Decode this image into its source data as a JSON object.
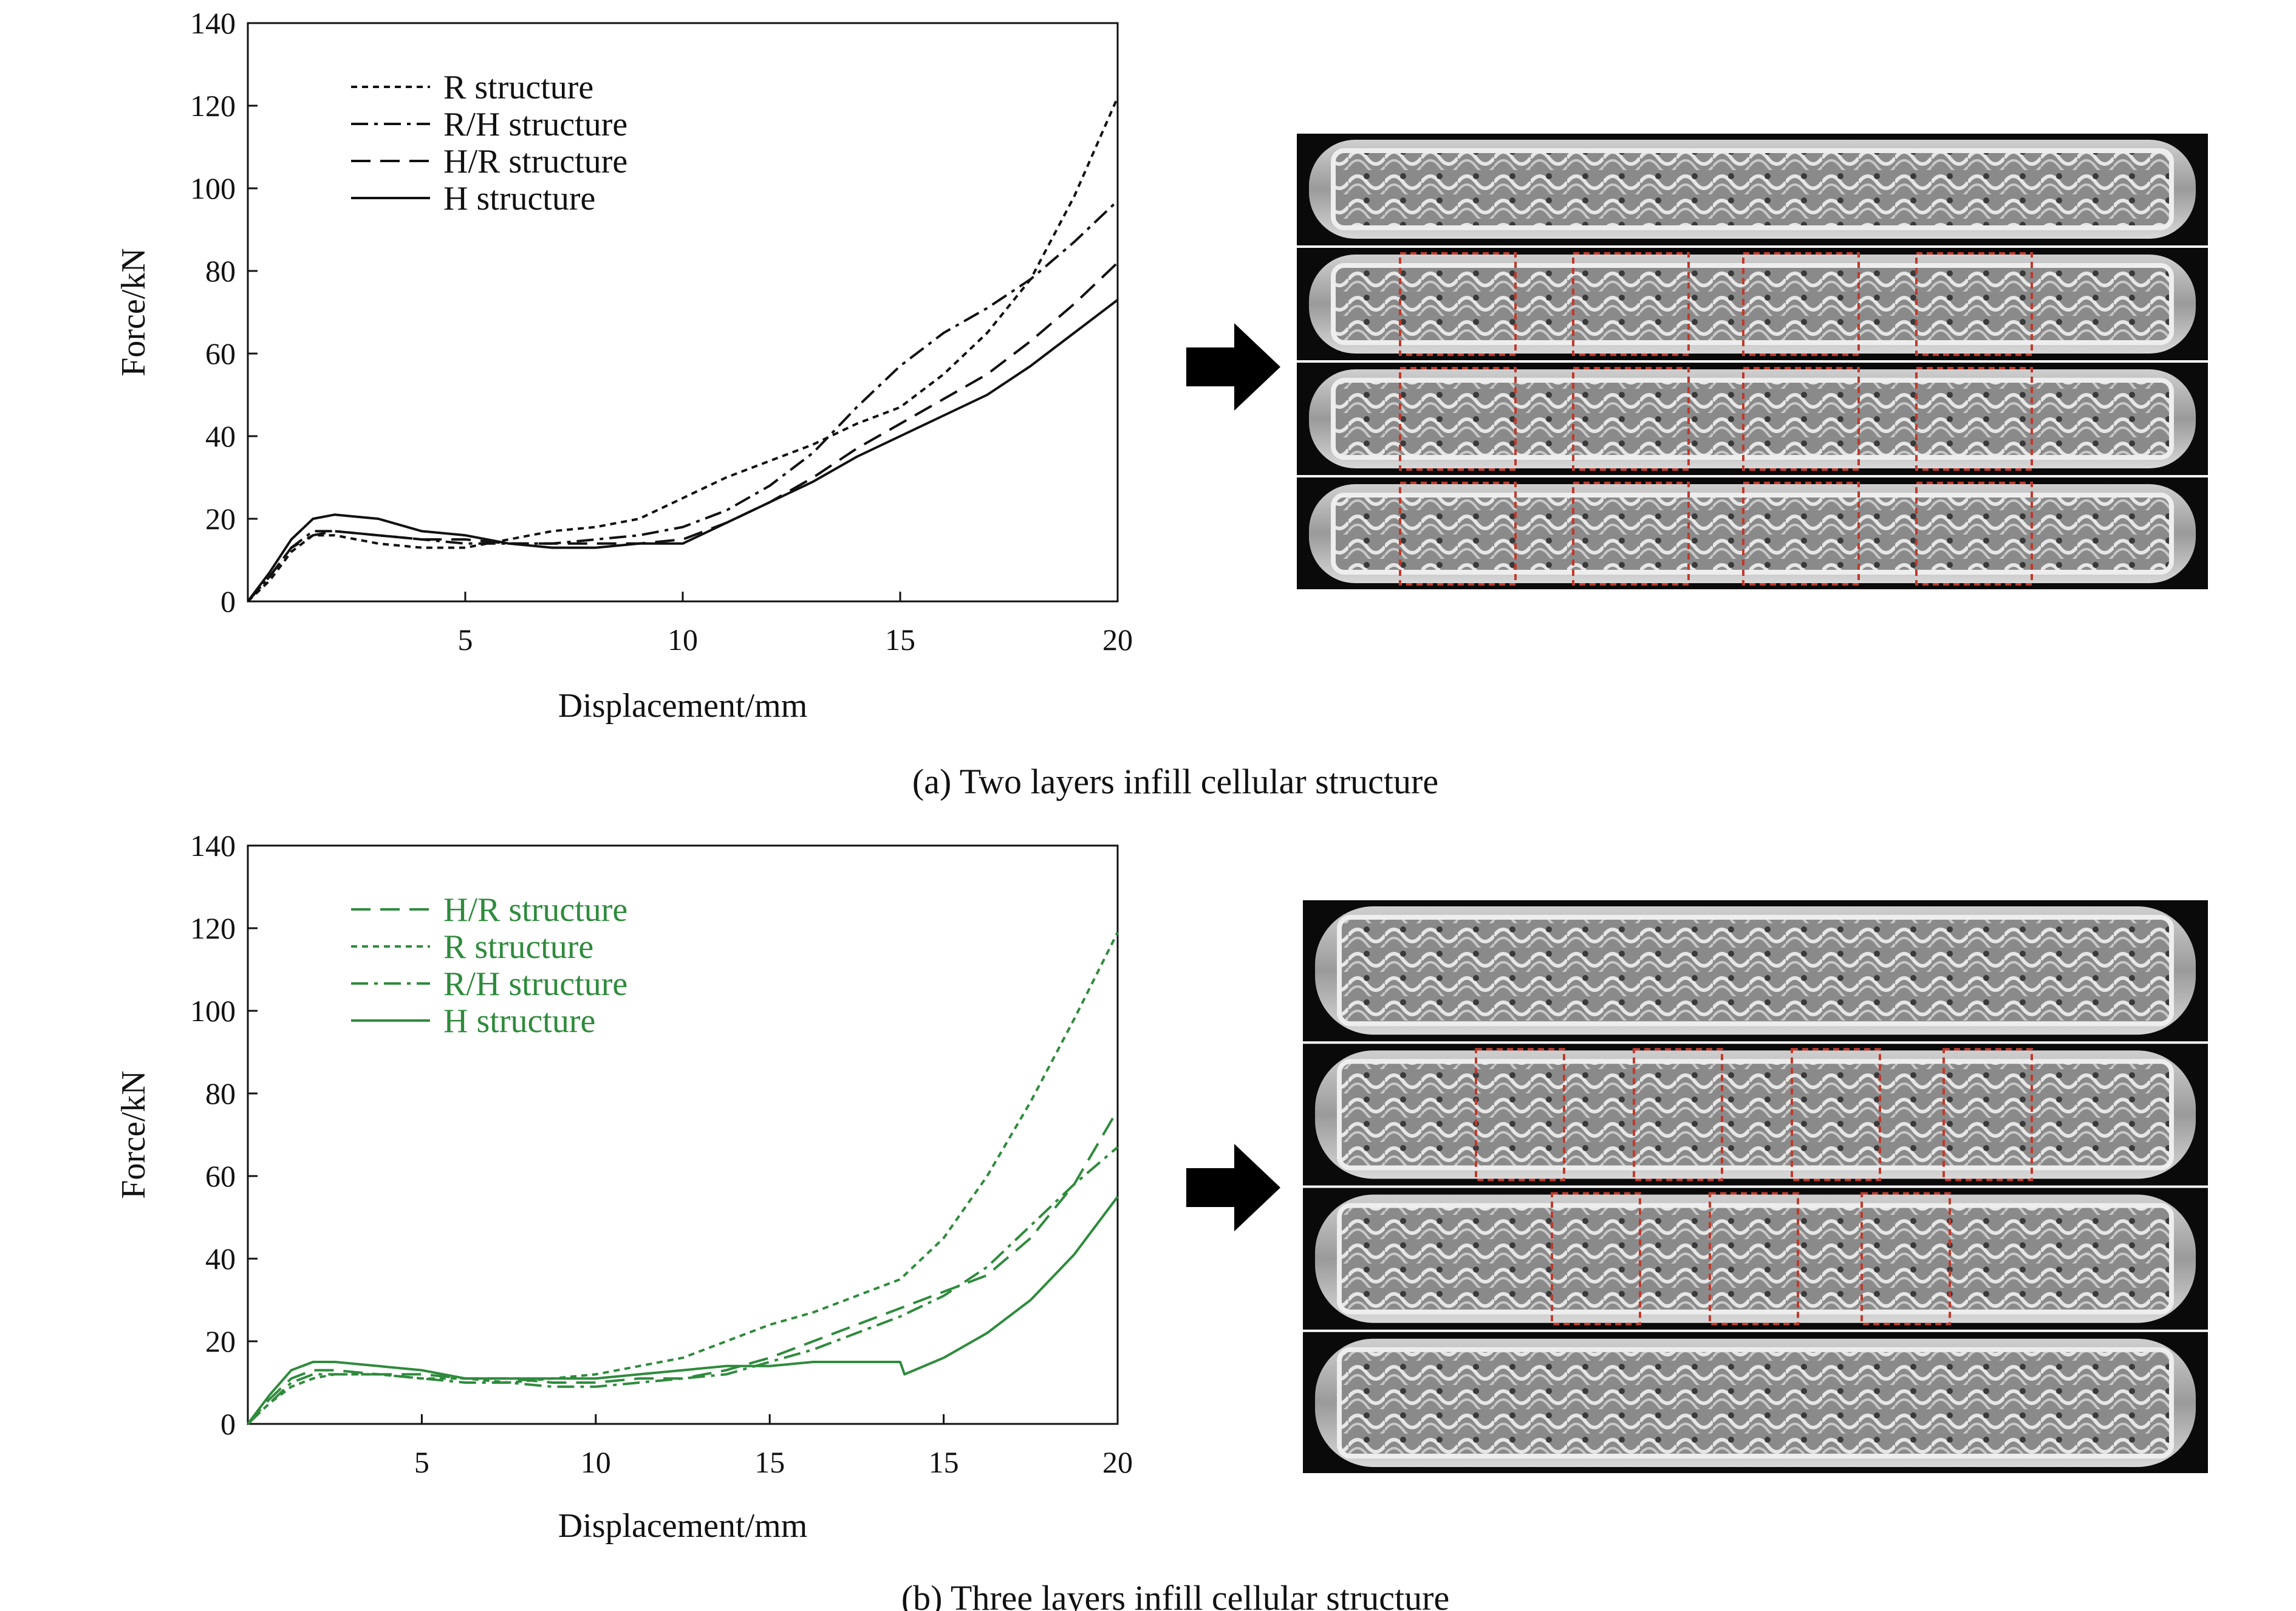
{
  "chart_data": [
    {
      "type": "line",
      "caption": "(a) Two layers infill cellular structure",
      "xlabel": "Displacement/mm",
      "ylabel": "Force/kN",
      "xlim": [
        0,
        20
      ],
      "ylim": [
        0,
        140
      ],
      "x_ticks": [
        "5",
        "10",
        "15",
        "20"
      ],
      "y_ticks": [
        "0",
        "20",
        "40",
        "60",
        "80",
        "100",
        "120",
        "140"
      ],
      "color": "#111111",
      "legend_placement": "top-left",
      "series": [
        {
          "name": "R structure",
          "dash": "short-dash",
          "points": [
            [
              0,
              0
            ],
            [
              0.5,
              5
            ],
            [
              1,
              12
            ],
            [
              1.5,
              16
            ],
            [
              2,
              16
            ],
            [
              3,
              14
            ],
            [
              4,
              13
            ],
            [
              5,
              13
            ],
            [
              6,
              15
            ],
            [
              7,
              17
            ],
            [
              8,
              18
            ],
            [
              9,
              20
            ],
            [
              10,
              25
            ],
            [
              11,
              30
            ],
            [
              12,
              34
            ],
            [
              13,
              38
            ],
            [
              14,
              43
            ],
            [
              15,
              47
            ],
            [
              16,
              55
            ],
            [
              17,
              65
            ],
            [
              18,
              78
            ],
            [
              19,
              98
            ],
            [
              20,
              122
            ]
          ]
        },
        {
          "name": "R/H structure",
          "dash": "dash-dot",
          "points": [
            [
              0,
              0
            ],
            [
              0.5,
              6
            ],
            [
              1,
              13
            ],
            [
              1.5,
              17
            ],
            [
              2,
              17
            ],
            [
              3,
              16
            ],
            [
              4,
              15
            ],
            [
              5,
              14
            ],
            [
              6,
              14
            ],
            [
              7,
              14
            ],
            [
              8,
              15
            ],
            [
              9,
              16
            ],
            [
              10,
              18
            ],
            [
              11,
              22
            ],
            [
              12,
              28
            ],
            [
              13,
              36
            ],
            [
              14,
              47
            ],
            [
              15,
              57
            ],
            [
              16,
              65
            ],
            [
              17,
              71
            ],
            [
              18,
              78
            ],
            [
              19,
              87
            ],
            [
              20,
              97
            ]
          ]
        },
        {
          "name": "H/R structure",
          "dash": "long-dash",
          "points": [
            [
              0,
              0
            ],
            [
              0.5,
              6
            ],
            [
              1,
              13
            ],
            [
              1.5,
              16
            ],
            [
              2,
              17
            ],
            [
              3,
              16
            ],
            [
              4,
              15
            ],
            [
              5,
              15
            ],
            [
              6,
              14
            ],
            [
              7,
              14
            ],
            [
              8,
              14
            ],
            [
              9,
              14
            ],
            [
              10,
              15
            ],
            [
              11,
              19
            ],
            [
              12,
              24
            ],
            [
              13,
              30
            ],
            [
              14,
              37
            ],
            [
              15,
              43
            ],
            [
              16,
              49
            ],
            [
              17,
              55
            ],
            [
              18,
              63
            ],
            [
              19,
              72
            ],
            [
              20,
              82
            ]
          ]
        },
        {
          "name": "H structure",
          "dash": "solid",
          "points": [
            [
              0,
              0
            ],
            [
              0.5,
              7
            ],
            [
              1,
              15
            ],
            [
              1.5,
              20
            ],
            [
              2,
              21
            ],
            [
              3,
              20
            ],
            [
              4,
              17
            ],
            [
              5,
              16
            ],
            [
              6,
              14
            ],
            [
              7,
              13
            ],
            [
              8,
              13
            ],
            [
              9,
              14
            ],
            [
              10,
              14
            ],
            [
              11,
              19
            ],
            [
              12,
              24
            ],
            [
              13,
              29
            ],
            [
              14,
              35
            ],
            [
              15,
              40
            ],
            [
              16,
              45
            ],
            [
              17,
              50
            ],
            [
              18,
              57
            ],
            [
              19,
              65
            ],
            [
              20,
              73
            ]
          ]
        }
      ]
    },
    {
      "type": "line",
      "caption": "(b) Three layers infill cellular structure",
      "xlabel": "Displacement/mm",
      "ylabel": "Force/kN",
      "xlim": [
        0,
        20
      ],
      "ylim": [
        0,
        140
      ],
      "x_ticks": [
        "5",
        "10",
        "15",
        "15",
        "20"
      ],
      "y_ticks": [
        "0",
        "20",
        "40",
        "60",
        "80",
        "100",
        "120",
        "140"
      ],
      "color": "#2e8b3c",
      "legend_placement": "top-left",
      "series": [
        {
          "name": "H/R structure",
          "dash": "long-dash",
          "points": [
            [
              0,
              0
            ],
            [
              0.5,
              6
            ],
            [
              1,
              11
            ],
            [
              1.5,
              13
            ],
            [
              2,
              13
            ],
            [
              3,
              12
            ],
            [
              4,
              12
            ],
            [
              5,
              11
            ],
            [
              6,
              11
            ],
            [
              7,
              10
            ],
            [
              8,
              10
            ],
            [
              9,
              11
            ],
            [
              10,
              11
            ],
            [
              11,
              13
            ],
            [
              12,
              16
            ],
            [
              13,
              20
            ],
            [
              14,
              24
            ],
            [
              15,
              28
            ],
            [
              16,
              32
            ],
            [
              17,
              36
            ],
            [
              18,
              45
            ],
            [
              19,
              58
            ],
            [
              20,
              76
            ]
          ]
        },
        {
          "name": "R structure",
          "dash": "short-dash",
          "points": [
            [
              0,
              0
            ],
            [
              0.5,
              5
            ],
            [
              1,
              9
            ],
            [
              1.5,
              11
            ],
            [
              2,
              12
            ],
            [
              3,
              12
            ],
            [
              4,
              11
            ],
            [
              5,
              11
            ],
            [
              6,
              10
            ],
            [
              7,
              11
            ],
            [
              8,
              12
            ],
            [
              9,
              14
            ],
            [
              10,
              16
            ],
            [
              11,
              20
            ],
            [
              12,
              24
            ],
            [
              13,
              27
            ],
            [
              14,
              31
            ],
            [
              15,
              35
            ],
            [
              16,
              45
            ],
            [
              17,
              60
            ],
            [
              18,
              78
            ],
            [
              19,
              98
            ],
            [
              20,
              119
            ]
          ]
        },
        {
          "name": "R/H structure",
          "dash": "dash-dot",
          "points": [
            [
              0,
              0
            ],
            [
              0.5,
              5
            ],
            [
              1,
              10
            ],
            [
              1.5,
              12
            ],
            [
              2,
              12
            ],
            [
              3,
              12
            ],
            [
              4,
              11
            ],
            [
              5,
              10
            ],
            [
              6,
              10
            ],
            [
              7,
              9
            ],
            [
              8,
              9
            ],
            [
              9,
              10
            ],
            [
              10,
              11
            ],
            [
              11,
              12
            ],
            [
              12,
              15
            ],
            [
              13,
              18
            ],
            [
              14,
              22
            ],
            [
              15,
              26
            ],
            [
              16,
              31
            ],
            [
              17,
              38
            ],
            [
              18,
              48
            ],
            [
              19,
              58
            ],
            [
              20,
              67
            ]
          ]
        },
        {
          "name": "H structure",
          "dash": "solid",
          "points": [
            [
              0,
              0
            ],
            [
              0.5,
              7
            ],
            [
              1,
              13
            ],
            [
              1.5,
              15
            ],
            [
              2,
              15
            ],
            [
              3,
              14
            ],
            [
              4,
              13
            ],
            [
              5,
              11
            ],
            [
              6,
              11
            ],
            [
              7,
              11
            ],
            [
              8,
              11
            ],
            [
              9,
              12
            ],
            [
              10,
              13
            ],
            [
              11,
              14
            ],
            [
              12,
              14
            ],
            [
              13,
              15
            ],
            [
              14,
              15
            ],
            [
              15,
              15
            ],
            [
              15.1,
              12
            ],
            [
              16,
              16
            ],
            [
              17,
              22
            ],
            [
              18,
              30
            ],
            [
              19,
              41
            ],
            [
              20,
              55
            ]
          ]
        }
      ]
    }
  ]
}
